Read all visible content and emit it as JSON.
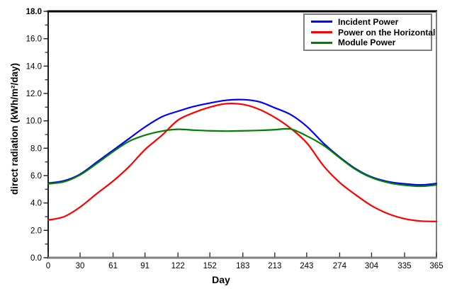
{
  "chart_data": {
    "type": "line",
    "title": "",
    "xlabel": "Day",
    "ylabel": "direct radiation  (kWh/m²/day)",
    "xlim": [
      0,
      365
    ],
    "ylim": [
      0,
      18
    ],
    "grid": false,
    "x_tick_values": [
      0,
      30,
      61,
      91,
      122,
      152,
      183,
      213,
      243,
      274,
      304,
      335,
      365
    ],
    "y_tick_values": [
      0,
      2,
      4,
      6,
      8,
      10,
      12,
      14,
      16,
      18
    ],
    "y_tick_labels": [
      "0.0",
      "2.0",
      "4.0",
      "6.0",
      "8.0",
      "10.0",
      "12.0",
      "14.0",
      "16.0",
      "18.0"
    ],
    "y_minor_tick_values": [
      1,
      3,
      5,
      7,
      9,
      11,
      13,
      15,
      17
    ],
    "legend": {
      "position": "top-right",
      "border_color": "#808080"
    },
    "x": [
      0,
      15,
      30,
      46,
      61,
      76,
      91,
      107,
      122,
      137,
      152,
      167,
      183,
      198,
      213,
      228,
      243,
      259,
      274,
      289,
      304,
      320,
      335,
      350,
      365
    ],
    "series": [
      {
        "name": "Incident Power",
        "color": "#0000ff",
        "values": [
          5.45,
          5.62,
          6.1,
          7.0,
          7.85,
          8.7,
          9.55,
          10.3,
          10.7,
          11.05,
          11.3,
          11.5,
          11.55,
          11.4,
          10.95,
          10.45,
          9.6,
          8.35,
          7.35,
          6.5,
          5.9,
          5.55,
          5.4,
          5.32,
          5.42
        ]
      },
      {
        "name": "Power on the Horizontal",
        "color": "#ff0000",
        "values": [
          2.75,
          3.0,
          3.7,
          4.7,
          5.6,
          6.65,
          7.9,
          8.95,
          10.05,
          10.6,
          11.0,
          11.25,
          11.2,
          10.85,
          10.25,
          9.45,
          8.4,
          6.7,
          5.5,
          4.6,
          3.8,
          3.2,
          2.85,
          2.68,
          2.65
        ]
      },
      {
        "name": "Module Power",
        "color": "#008000",
        "values": [
          5.4,
          5.55,
          6.05,
          6.9,
          7.75,
          8.5,
          8.95,
          9.25,
          9.38,
          9.32,
          9.27,
          9.25,
          9.27,
          9.3,
          9.35,
          9.4,
          8.9,
          8.2,
          7.3,
          6.45,
          5.85,
          5.48,
          5.3,
          5.22,
          5.32
        ]
      }
    ]
  },
  "frame": {
    "top_color": "#000000",
    "left_color": "#1a1a1a",
    "bottom_color": "#808080",
    "right_color": "#808080",
    "tick_color": "#333333",
    "background": "#ffffff"
  }
}
